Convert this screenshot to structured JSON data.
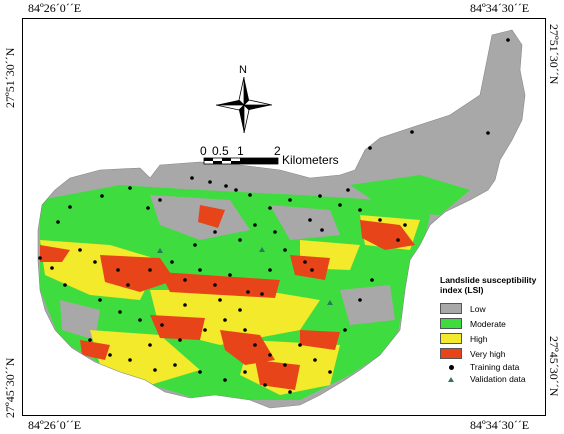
{
  "coords": {
    "top_left": "84º26´0´´E",
    "top_right": "84º34´30´´E",
    "bottom_left": "84º26´0´´E",
    "bottom_right": "84º34´30´´E",
    "left_top": "27º51´30´´N",
    "left_bottom": "27º45´30´´N",
    "right_top": "27º51´30´´N",
    "right_bottom": "27º45´30´´N"
  },
  "north_label": "N",
  "scale": {
    "t0": "0",
    "t05": "0.5",
    "t1": "1",
    "t2": "2",
    "unit": "Kilometers"
  },
  "legend": {
    "title": "Landslide susceptibility index (LSI)",
    "classes": [
      {
        "label": "Low",
        "color": "#a8a8a8"
      },
      {
        "label": "Moderate",
        "color": "#3fdc3f"
      },
      {
        "label": "High",
        "color": "#f2ea2a"
      },
      {
        "label": "Very high",
        "color": "#e8441a"
      }
    ],
    "training_label": "Training data",
    "validation_label": "Validation data"
  }
}
